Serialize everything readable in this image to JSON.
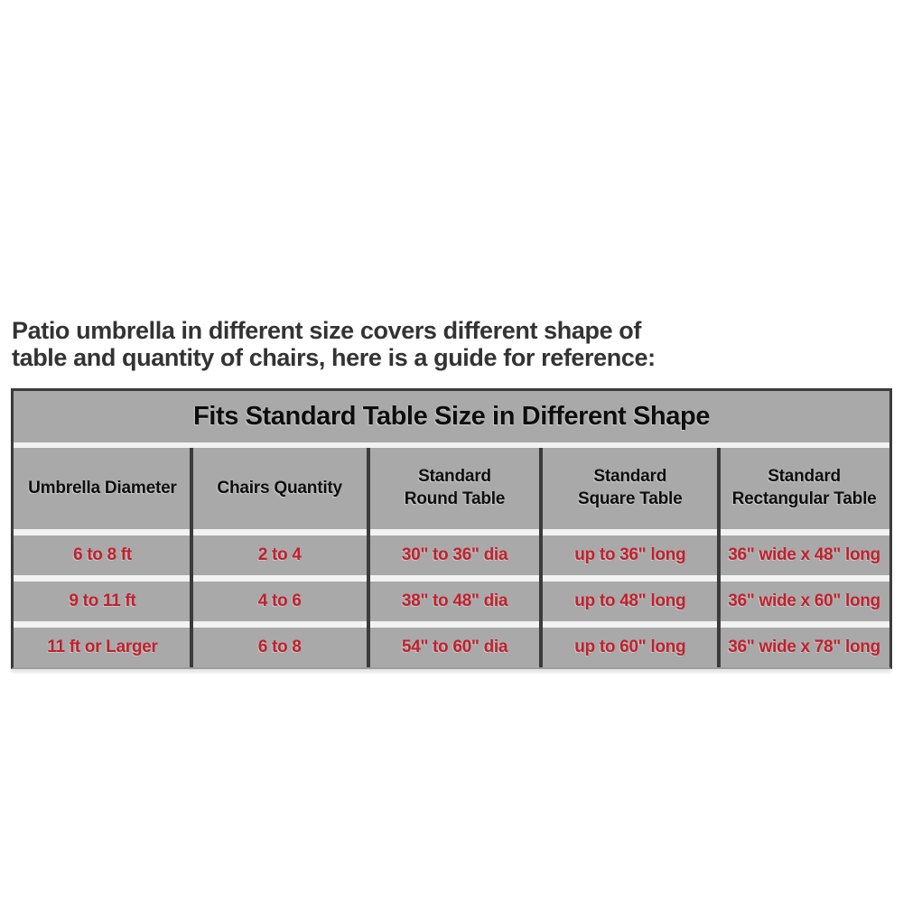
{
  "intro": {
    "line1": "Patio umbrella in different size covers different shape of",
    "line2": "table and quantity of chairs, here is a guide for reference:"
  },
  "table": {
    "title": "Fits Standard Table Size in Different Shape",
    "columns": [
      "Umbrella Diameter",
      "Chairs Quantity",
      "Standard\nRound Table",
      "Standard\nSquare Table",
      "Standard\nRectangular Table"
    ],
    "rows": [
      [
        "6 to 8 ft",
        "2 to 4",
        "30\" to 36\" dia",
        "up to 36\" long",
        "36\" wide x 48\" long"
      ],
      [
        "9 to 11 ft",
        "4 to 6",
        "38\" to 48\" dia",
        "up to 48\" long",
        "36\" wide x 60\" long"
      ],
      [
        "11 ft or Larger",
        "6 to 8",
        "54\" to 60\" dia",
        "up to 60\" long",
        "36\" wide x 78\" long"
      ]
    ]
  },
  "colors": {
    "cell_background": "#a9a9a9",
    "border_dark": "#3b3b3b",
    "row_gap_light": "#f2f2f2",
    "data_text_red": "#c0212e",
    "header_text_black": "#0d0d0d",
    "intro_text": "#333333",
    "page_background": "#ffffff"
  }
}
